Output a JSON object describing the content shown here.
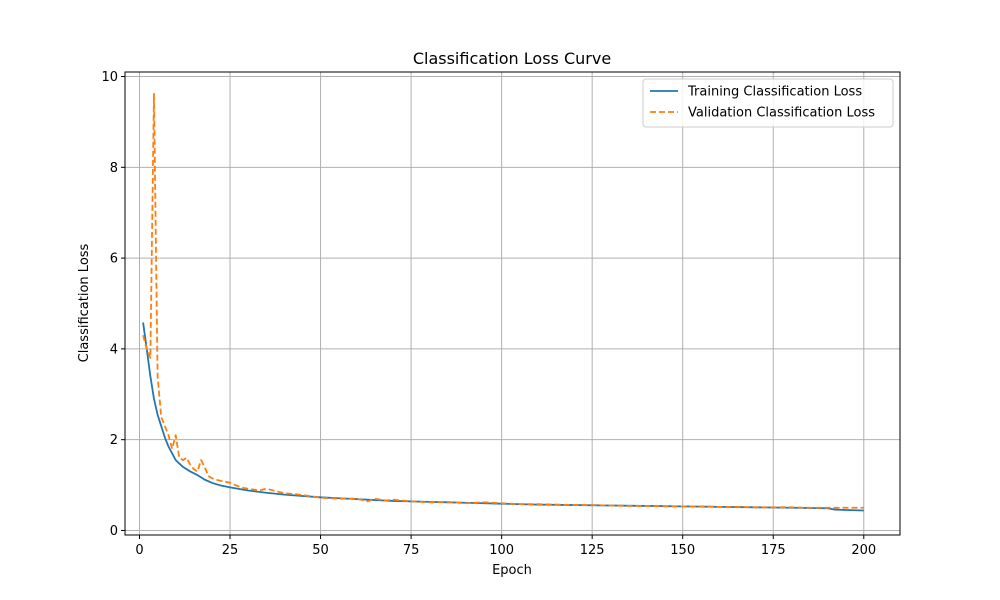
{
  "chart_data": {
    "type": "line",
    "title": "Classification Loss Curve",
    "xlabel": "Epoch",
    "ylabel": "Classification Loss",
    "xlim": [
      -4,
      210
    ],
    "ylim": [
      -0.1,
      10.1
    ],
    "xticks": [
      0,
      25,
      50,
      75,
      100,
      125,
      150,
      175,
      200
    ],
    "yticks": [
      0,
      2,
      4,
      6,
      8,
      10
    ],
    "grid": true,
    "legend_position": "top-right",
    "series": [
      {
        "name": "Training Classification Loss",
        "color": "#1f77b4",
        "style": "solid",
        "x": [
          1,
          2,
          3,
          4,
          5,
          6,
          7,
          8,
          9,
          10,
          12,
          14,
          16,
          18,
          20,
          22,
          25,
          30,
          35,
          40,
          45,
          50,
          55,
          60,
          65,
          70,
          75,
          80,
          85,
          90,
          95,
          100,
          110,
          120,
          130,
          140,
          150,
          160,
          170,
          180,
          190,
          192,
          195,
          200
        ],
        "values": [
          4.58,
          4.0,
          3.4,
          2.9,
          2.55,
          2.3,
          2.05,
          1.85,
          1.7,
          1.55,
          1.4,
          1.3,
          1.22,
          1.12,
          1.05,
          1.0,
          0.95,
          0.88,
          0.83,
          0.79,
          0.76,
          0.73,
          0.71,
          0.69,
          0.67,
          0.65,
          0.64,
          0.63,
          0.62,
          0.61,
          0.6,
          0.59,
          0.57,
          0.56,
          0.55,
          0.54,
          0.53,
          0.52,
          0.51,
          0.5,
          0.49,
          0.46,
          0.45,
          0.44
        ]
      },
      {
        "name": "Validation Classification Loss",
        "color": "#ff7f0e",
        "style": "dashed",
        "x": [
          1,
          2,
          3,
          4,
          5,
          6,
          7,
          8,
          9,
          10,
          11,
          12,
          13,
          14,
          15,
          16,
          17,
          18,
          19,
          20,
          22,
          25,
          28,
          30,
          33,
          35,
          38,
          40,
          43,
          45,
          50,
          55,
          60,
          63,
          65,
          68,
          70,
          75,
          80,
          85,
          90,
          95,
          100,
          105,
          110,
          115,
          120,
          125,
          130,
          135,
          140,
          145,
          150,
          155,
          160,
          165,
          170,
          175,
          180,
          185,
          190,
          195,
          200
        ],
        "values": [
          4.3,
          4.0,
          3.8,
          9.62,
          3.4,
          2.5,
          2.3,
          2.1,
          1.8,
          2.1,
          1.6,
          1.55,
          1.6,
          1.45,
          1.35,
          1.3,
          1.55,
          1.4,
          1.2,
          1.15,
          1.1,
          1.05,
          0.95,
          0.92,
          0.88,
          0.92,
          0.86,
          0.82,
          0.8,
          0.78,
          0.72,
          0.7,
          0.7,
          0.64,
          0.7,
          0.66,
          0.68,
          0.64,
          0.62,
          0.63,
          0.6,
          0.62,
          0.6,
          0.58,
          0.58,
          0.57,
          0.56,
          0.56,
          0.55,
          0.54,
          0.54,
          0.53,
          0.53,
          0.53,
          0.52,
          0.52,
          0.51,
          0.51,
          0.51,
          0.5,
          0.5,
          0.5,
          0.5
        ]
      }
    ]
  }
}
